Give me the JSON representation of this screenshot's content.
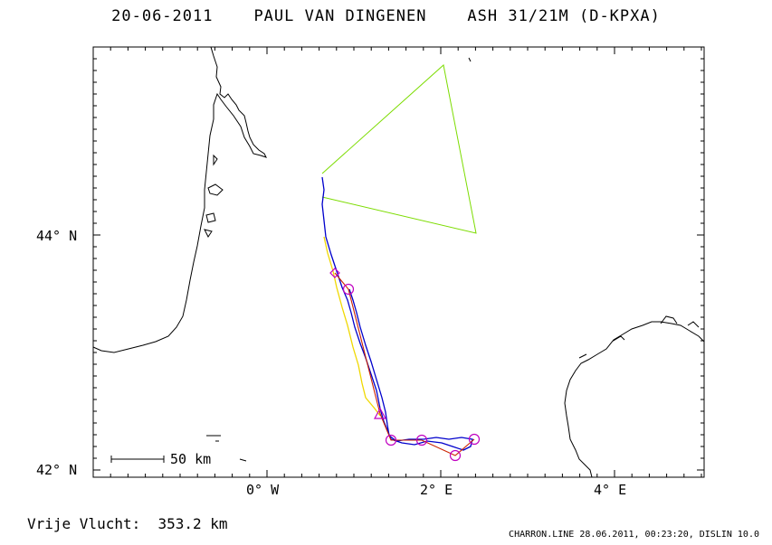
{
  "header": {
    "date": "20-06-2011",
    "pilot": "PAUL VAN DINGENEN",
    "glider": "ASH 31/21M (D-KPXA)"
  },
  "map": {
    "lat_labels": [
      {
        "text": "44° N",
        "value": 44
      },
      {
        "text": "42° N",
        "value": 42
      }
    ],
    "lon_labels": [
      {
        "text": "0° W",
        "value": 0
      },
      {
        "text": "2° E",
        "value": 2
      },
      {
        "text": "4° E",
        "value": 4
      }
    ],
    "scale_bar": "50 km",
    "colors": {
      "task": "#7cdc00",
      "track_blue": "#0000cc",
      "track_yellow": "#f0d800",
      "optimized": "#cc2200",
      "markers": "#c000c0",
      "coast": "#000000"
    }
  },
  "footer": {
    "distance_label": "Vrije Vlucht:",
    "distance_value": "353.2 km",
    "software": "CHARRON.LINE 28.06.2011, 00:23:20, DISLIN 10.0"
  }
}
